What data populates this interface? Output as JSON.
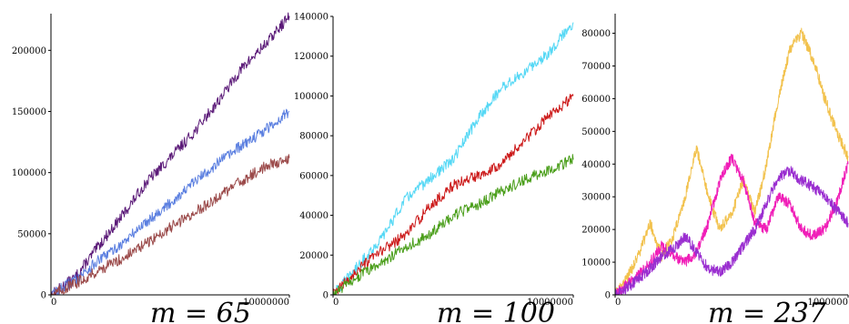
{
  "chart_data": [
    {
      "type": "line",
      "caption": "m = 65",
      "title": "",
      "xlabel": "",
      "ylabel": "",
      "xlim": [
        0,
        10000000
      ],
      "ylim": [
        0,
        230000
      ],
      "xticks": [
        {
          "value": 0,
          "label": "0"
        },
        {
          "value": 10000000,
          "label": "10000000"
        }
      ],
      "yticks": [
        {
          "value": 0,
          "label": "0"
        },
        {
          "value": 50000,
          "label": "50000"
        },
        {
          "value": 100000,
          "label": "100000"
        },
        {
          "value": 150000,
          "label": "150000"
        },
        {
          "value": 200000,
          "label": "200000"
        }
      ],
      "grid": false,
      "legend": "none",
      "series": [
        {
          "color": "#5b1a78",
          "x": [
            0,
            1000000,
            2000000,
            3000000,
            4000000,
            5000000,
            6000000,
            7000000,
            8000000,
            9000000,
            10000000
          ],
          "values": [
            0,
            14000,
            40000,
            65000,
            92000,
            112000,
            133000,
            158000,
            185000,
            205000,
            228000
          ]
        },
        {
          "color": "#5b7fe0",
          "x": [
            0,
            1000000,
            2000000,
            3000000,
            4000000,
            5000000,
            6000000,
            7000000,
            8000000,
            9000000,
            10000000
          ],
          "values": [
            0,
            12000,
            28000,
            42000,
            60000,
            75000,
            92000,
            108000,
            122000,
            135000,
            150000
          ]
        },
        {
          "color": "#9b4a4a",
          "x": [
            0,
            1000000,
            2000000,
            3000000,
            4000000,
            5000000,
            6000000,
            7000000,
            8000000,
            9000000,
            10000000
          ],
          "values": [
            0,
            9000,
            20000,
            30000,
            42000,
            55000,
            67000,
            80000,
            93000,
            105000,
            112000
          ]
        }
      ]
    },
    {
      "type": "line",
      "caption": "m = 100",
      "title": "",
      "xlabel": "",
      "ylabel": "",
      "xlim": [
        0,
        10000000
      ],
      "ylim": [
        0,
        140000
      ],
      "xticks": [
        {
          "value": 0,
          "label": "0"
        },
        {
          "value": 10000000,
          "label": "10000000"
        }
      ],
      "yticks": [
        {
          "value": 0,
          "label": "0"
        },
        {
          "value": 20000,
          "label": "20000"
        },
        {
          "value": 40000,
          "label": "40000"
        },
        {
          "value": 60000,
          "label": "60000"
        },
        {
          "value": 80000,
          "label": "80000"
        },
        {
          "value": 100000,
          "label": "100000"
        },
        {
          "value": 120000,
          "label": "120000"
        },
        {
          "value": 140000,
          "label": "140000"
        }
      ],
      "grid": false,
      "legend": "none",
      "series": [
        {
          "color": "#55d8f5",
          "x": [
            0,
            1000000,
            2000000,
            3000000,
            4000000,
            5000000,
            6000000,
            7000000,
            8000000,
            9000000,
            10000000
          ],
          "values": [
            0,
            14000,
            28000,
            48000,
            58000,
            68000,
            88000,
            104000,
            112000,
            122000,
            137000
          ]
        },
        {
          "color": "#cc1a1a",
          "x": [
            0,
            1000000,
            2000000,
            3000000,
            4000000,
            5000000,
            6000000,
            7000000,
            8000000,
            9000000,
            10000000
          ],
          "values": [
            0,
            12000,
            22000,
            30000,
            44000,
            55000,
            60000,
            66000,
            78000,
            90000,
            100000
          ]
        },
        {
          "color": "#4a9e1a",
          "x": [
            0,
            1000000,
            2000000,
            3000000,
            4000000,
            5000000,
            6000000,
            7000000,
            8000000,
            9000000,
            10000000
          ],
          "values": [
            0,
            9000,
            16000,
            24000,
            30000,
            40000,
            45000,
            52000,
            58000,
            63000,
            68000
          ]
        }
      ]
    },
    {
      "type": "line",
      "caption": "m = 237",
      "title": "",
      "xlabel": "",
      "ylabel": "",
      "xlim": [
        0,
        1000000
      ],
      "ylim": [
        0,
        86000
      ],
      "xticks": [
        {
          "value": 0,
          "label": "0"
        },
        {
          "value": 1000000,
          "label": "1000000"
        }
      ],
      "yticks": [
        {
          "value": 0,
          "label": "0"
        },
        {
          "value": 10000,
          "label": "10000"
        },
        {
          "value": 20000,
          "label": "20000"
        },
        {
          "value": 30000,
          "label": "30000"
        },
        {
          "value": 40000,
          "label": "40000"
        },
        {
          "value": 50000,
          "label": "50000"
        },
        {
          "value": 60000,
          "label": "60000"
        },
        {
          "value": 70000,
          "label": "70000"
        },
        {
          "value": 80000,
          "label": "80000"
        }
      ],
      "grid": false,
      "legend": "none",
      "series": [
        {
          "color": "#f2c24e",
          "x": [
            0,
            50000,
            100000,
            150000,
            200000,
            250000,
            300000,
            350000,
            400000,
            450000,
            500000,
            550000,
            600000,
            650000,
            700000,
            750000,
            800000,
            850000,
            900000,
            950000,
            1000000
          ],
          "values": [
            0,
            5000,
            12000,
            22000,
            12000,
            18000,
            30000,
            45000,
            30000,
            20000,
            25000,
            35000,
            25000,
            40000,
            60000,
            75000,
            80000,
            72000,
            60000,
            50000,
            42000
          ]
        },
        {
          "color": "#f01fb8",
          "x": [
            0,
            50000,
            100000,
            150000,
            200000,
            250000,
            300000,
            350000,
            400000,
            450000,
            500000,
            550000,
            600000,
            650000,
            700000,
            750000,
            800000,
            850000,
            900000,
            950000,
            1000000
          ],
          "values": [
            0,
            3000,
            6000,
            10000,
            15000,
            12000,
            10000,
            13000,
            22000,
            35000,
            42000,
            35000,
            22000,
            20000,
            30000,
            28000,
            20000,
            18000,
            20000,
            28000,
            40000
          ]
        },
        {
          "color": "#9a2ed0",
          "x": [
            0,
            50000,
            100000,
            150000,
            200000,
            250000,
            300000,
            350000,
            400000,
            450000,
            500000,
            550000,
            600000,
            650000,
            700000,
            750000,
            800000,
            850000,
            900000,
            950000,
            1000000
          ],
          "values": [
            0,
            2000,
            5000,
            8000,
            12000,
            14000,
            18000,
            13000,
            8000,
            7000,
            10000,
            15000,
            20000,
            28000,
            36000,
            38000,
            35000,
            33000,
            30000,
            26000,
            22000
          ]
        }
      ]
    }
  ]
}
